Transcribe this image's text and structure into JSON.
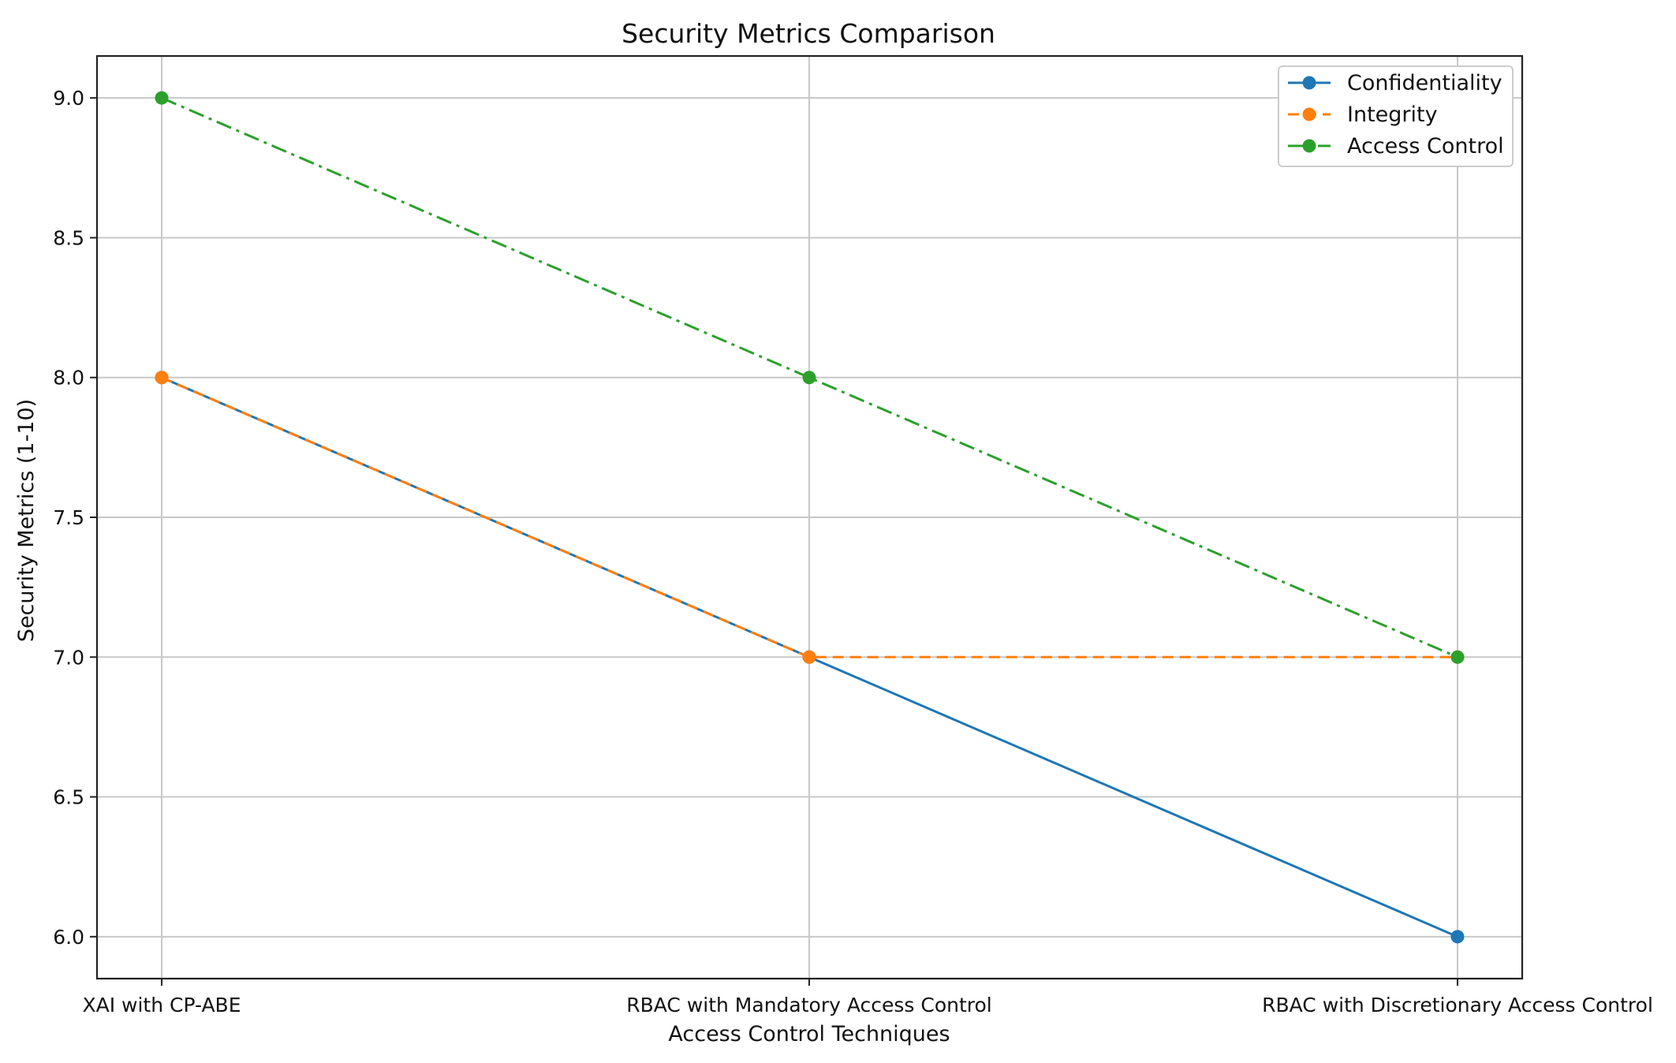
{
  "chart_data": {
    "type": "line",
    "title": "Security Metrics Comparison",
    "xlabel": "Access Control Techniques",
    "ylabel": "Security Metrics (1-10)",
    "categories": [
      "XAI with CP-ABE",
      "RBAC with Mandatory Access Control",
      "RBAC with Discretionary Access Control"
    ],
    "ylim": [
      5.85,
      9.15
    ],
    "yticks": [
      6.0,
      6.5,
      7.0,
      7.5,
      8.0,
      8.5,
      9.0
    ],
    "ytick_labels": [
      "6.0",
      "6.5",
      "7.0",
      "7.5",
      "8.0",
      "8.5",
      "9.0"
    ],
    "grid": true,
    "legend_position": "top-right",
    "series": [
      {
        "name": "Confidentiality",
        "values": [
          8,
          7,
          6
        ],
        "color": "#1f77b4",
        "linestyle": "solid",
        "marker": "circle"
      },
      {
        "name": "Integrity",
        "values": [
          8,
          7,
          7
        ],
        "color": "#ff7f0e",
        "linestyle": "dashed",
        "marker": "circle"
      },
      {
        "name": "Access Control",
        "values": [
          9,
          8,
          7
        ],
        "color": "#2ca02c",
        "linestyle": "dashdot",
        "marker": "circle"
      }
    ]
  }
}
